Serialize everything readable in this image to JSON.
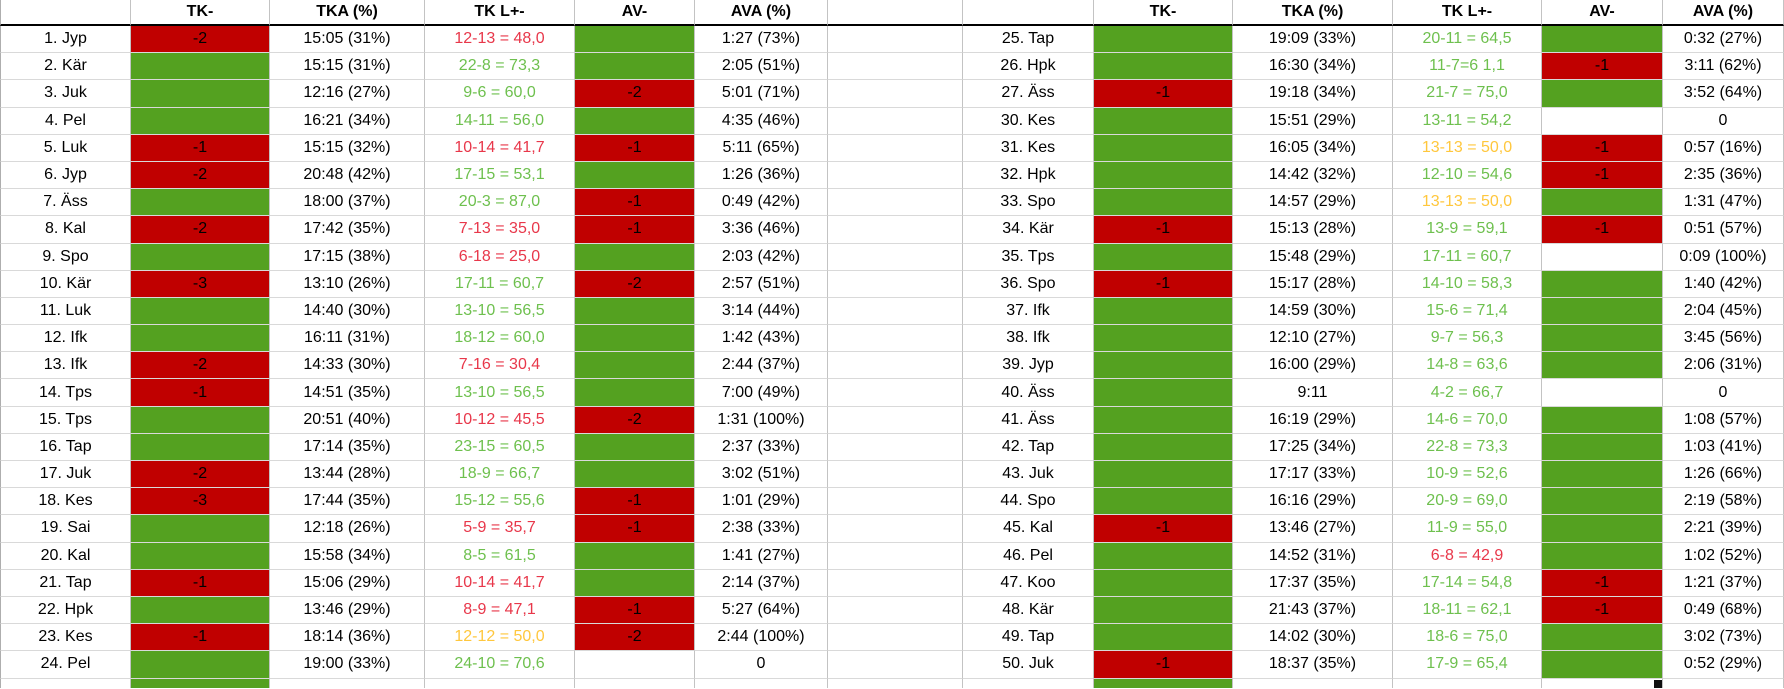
{
  "columns": {
    "name": "",
    "tk": "TK-",
    "tka": "TKA (%)",
    "tkl": "TK L+-",
    "av": "AV-",
    "ava": "AVA (%)"
  },
  "colors": {
    "green_fill": "#54A120",
    "red_fill": "#C00000",
    "green_text": "#6EC04E",
    "red_text": "#E8374A",
    "yellow_text": "#FFC73D",
    "gridline": "#d9d9d9",
    "header_rule": "#000000"
  },
  "left": {
    "rows": [
      {
        "name": "1. Jyp",
        "tk_fill": "red",
        "tk": "-2",
        "tka": "15:05 (31%)",
        "tkl": "12-13 = 48,0",
        "tkl_color": "red",
        "av_fill": "green",
        "av": "",
        "ava": "1:27 (73%)"
      },
      {
        "name": "2. Kär",
        "tk_fill": "green",
        "tk": "",
        "tka": "15:15 (31%)",
        "tkl": "22-8 = 73,3",
        "tkl_color": "green",
        "av_fill": "green",
        "av": "",
        "ava": "2:05 (51%)"
      },
      {
        "name": "3. Juk",
        "tk_fill": "green",
        "tk": "",
        "tka": "12:16 (27%)",
        "tkl": "9-6 = 60,0",
        "tkl_color": "green",
        "av_fill": "red",
        "av": "-2",
        "ava": "5:01 (71%)"
      },
      {
        "name": "4. Pel",
        "tk_fill": "green",
        "tk": "",
        "tka": "16:21 (34%)",
        "tkl": "14-11 = 56,0",
        "tkl_color": "green",
        "av_fill": "green",
        "av": "",
        "ava": "4:35 (46%)"
      },
      {
        "name": "5. Luk",
        "tk_fill": "red",
        "tk": "-1",
        "tka": "15:15 (32%)",
        "tkl": "10-14 = 41,7",
        "tkl_color": "red",
        "av_fill": "red",
        "av": "-1",
        "ava": "5:11 (65%)"
      },
      {
        "name": "6. Jyp",
        "tk_fill": "red",
        "tk": "-2",
        "tka": "20:48 (42%)",
        "tkl": "17-15 = 53,1",
        "tkl_color": "green",
        "av_fill": "green",
        "av": "",
        "ava": "1:26 (36%)"
      },
      {
        "name": "7. Äss",
        "tk_fill": "green",
        "tk": "",
        "tka": "18:00 (37%)",
        "tkl": "20-3 = 87,0",
        "tkl_color": "green",
        "av_fill": "red",
        "av": "-1",
        "ava": "0:49 (42%)"
      },
      {
        "name": "8. Kal",
        "tk_fill": "red",
        "tk": "-2",
        "tka": "17:42 (35%)",
        "tkl": "7-13 = 35,0",
        "tkl_color": "red",
        "av_fill": "red",
        "av": "-1",
        "ava": "3:36 (46%)"
      },
      {
        "name": "9. Spo",
        "tk_fill": "green",
        "tk": "",
        "tka": "17:15 (38%)",
        "tkl": "6-18 = 25,0",
        "tkl_color": "red",
        "av_fill": "green",
        "av": "",
        "ava": "2:03 (42%)"
      },
      {
        "name": "10. Kär",
        "tk_fill": "red",
        "tk": "-3",
        "tka": "13:10 (26%)",
        "tkl": "17-11 = 60,7",
        "tkl_color": "green",
        "av_fill": "red",
        "av": "-2",
        "ava": "2:57 (51%)"
      },
      {
        "name": "11. Luk",
        "tk_fill": "green",
        "tk": "",
        "tka": "14:40 (30%)",
        "tkl": "13-10 = 56,5",
        "tkl_color": "green",
        "av_fill": "green",
        "av": "",
        "ava": "3:14 (44%)"
      },
      {
        "name": "12. Ifk",
        "tk_fill": "green",
        "tk": "",
        "tka": "16:11 (31%)",
        "tkl": "18-12 = 60,0",
        "tkl_color": "green",
        "av_fill": "green",
        "av": "",
        "ava": "1:42 (43%)"
      },
      {
        "name": "13. Ifk",
        "tk_fill": "red",
        "tk": "-2",
        "tka": "14:33 (30%)",
        "tkl": "7-16 = 30,4",
        "tkl_color": "red",
        "av_fill": "green",
        "av": "",
        "ava": "2:44 (37%)"
      },
      {
        "name": "14. Tps",
        "tk_fill": "red",
        "tk": "-1",
        "tka": "14:51 (35%)",
        "tkl": "13-10 = 56,5",
        "tkl_color": "green",
        "av_fill": "green",
        "av": "",
        "ava": "7:00 (49%)"
      },
      {
        "name": "15. Tps",
        "tk_fill": "green",
        "tk": "",
        "tka": "20:51 (40%)",
        "tkl": "10-12 = 45,5",
        "tkl_color": "red",
        "av_fill": "red",
        "av": "-2",
        "ava": "1:31 (100%)"
      },
      {
        "name": "16. Tap",
        "tk_fill": "green",
        "tk": "",
        "tka": "17:14 (35%)",
        "tkl": "23-15 = 60,5",
        "tkl_color": "green",
        "av_fill": "green",
        "av": "",
        "ava": "2:37 (33%)"
      },
      {
        "name": "17. Juk",
        "tk_fill": "red",
        "tk": "-2",
        "tka": "13:44 (28%)",
        "tkl": "18-9 = 66,7",
        "tkl_color": "green",
        "av_fill": "green",
        "av": "",
        "ava": "3:02 (51%)"
      },
      {
        "name": "18. Kes",
        "tk_fill": "red",
        "tk": "-3",
        "tka": "17:44 (35%)",
        "tkl": "15-12 = 55,6",
        "tkl_color": "green",
        "av_fill": "red",
        "av": "-1",
        "ava": "1:01 (29%)"
      },
      {
        "name": "19. Sai",
        "tk_fill": "green",
        "tk": "",
        "tka": "12:18 (26%)",
        "tkl": "5-9 = 35,7",
        "tkl_color": "red",
        "av_fill": "red",
        "av": "-1",
        "ava": "2:38 (33%)"
      },
      {
        "name": "20. Kal",
        "tk_fill": "green",
        "tk": "",
        "tka": "15:58 (34%)",
        "tkl": "8-5 = 61,5",
        "tkl_color": "green",
        "av_fill": "green",
        "av": "",
        "ava": "1:41 (27%)"
      },
      {
        "name": "21. Tap",
        "tk_fill": "red",
        "tk": "-1",
        "tka": "15:06 (29%)",
        "tkl": "10-14 = 41,7",
        "tkl_color": "red",
        "av_fill": "green",
        "av": "",
        "ava": "2:14 (37%)"
      },
      {
        "name": "22. Hpk",
        "tk_fill": "green",
        "tk": "",
        "tka": "13:46 (29%)",
        "tkl": "8-9 = 47,1",
        "tkl_color": "red",
        "av_fill": "red",
        "av": "-1",
        "ava": "5:27 (64%)"
      },
      {
        "name": "23. Kes",
        "tk_fill": "red",
        "tk": "-1",
        "tka": "18:14 (36%)",
        "tkl": "12-12 = 50,0",
        "tkl_color": "yellow",
        "av_fill": "red",
        "av": "-2",
        "ava": "2:44 (100%)"
      },
      {
        "name": "24. Pel",
        "tk_fill": "green",
        "tk": "",
        "tka": "19:00 (33%)",
        "tkl": "24-10 = 70,6",
        "tkl_color": "green",
        "av_fill": "",
        "av": "",
        "ava": "0"
      }
    ]
  },
  "right": {
    "rows": [
      {
        "name": "25. Tap",
        "tk_fill": "green",
        "tk": "",
        "tka": "19:09 (33%)",
        "tkl": "20-11 = 64,5",
        "tkl_color": "green",
        "av_fill": "green",
        "av": "",
        "ava": "0:32 (27%)"
      },
      {
        "name": "26. Hpk",
        "tk_fill": "green",
        "tk": "",
        "tka": "16:30 (34%)",
        "tkl": "11-7=6 1,1",
        "tkl_color": "green",
        "av_fill": "red",
        "av": "-1",
        "ava": "3:11 (62%)"
      },
      {
        "name": "27. Äss",
        "tk_fill": "red",
        "tk": "-1",
        "tka": "19:18 (34%)",
        "tkl": "21-7 = 75,0",
        "tkl_color": "green",
        "av_fill": "green",
        "av": "",
        "ava": "3:52 (64%)"
      },
      {
        "name": "30. Kes",
        "tk_fill": "green",
        "tk": "",
        "tka": "15:51 (29%)",
        "tkl": "13-11 = 54,2",
        "tkl_color": "green",
        "av_fill": "",
        "av": "",
        "ava": "0"
      },
      {
        "name": "31. Kes",
        "tk_fill": "green",
        "tk": "",
        "tka": "16:05 (34%)",
        "tkl": "13-13 = 50,0",
        "tkl_color": "yellow",
        "av_fill": "red",
        "av": "-1",
        "ava": "0:57 (16%)"
      },
      {
        "name": "32. Hpk",
        "tk_fill": "green",
        "tk": "",
        "tka": "14:42 (32%)",
        "tkl": "12-10 = 54,6",
        "tkl_color": "green",
        "av_fill": "red",
        "av": "-1",
        "ava": "2:35 (36%)"
      },
      {
        "name": "33. Spo",
        "tk_fill": "green",
        "tk": "",
        "tka": "14:57 (29%)",
        "tkl": "13-13 = 50,0",
        "tkl_color": "yellow",
        "av_fill": "green",
        "av": "",
        "ava": "1:31 (47%)"
      },
      {
        "name": "34. Kär",
        "tk_fill": "red",
        "tk": "-1",
        "tka": "15:13 (28%)",
        "tkl": "13-9 = 59,1",
        "tkl_color": "green",
        "av_fill": "red",
        "av": "-1",
        "ava": "0:51 (57%)"
      },
      {
        "name": "35. Tps",
        "tk_fill": "green",
        "tk": "",
        "tka": "15:48 (29%)",
        "tkl": "17-11 = 60,7",
        "tkl_color": "green",
        "av_fill": "",
        "av": "",
        "ava": "0:09 (100%)"
      },
      {
        "name": "36. Spo",
        "tk_fill": "red",
        "tk": "-1",
        "tka": "15:17 (28%)",
        "tkl": "14-10 = 58,3",
        "tkl_color": "green",
        "av_fill": "green",
        "av": "",
        "ava": "1:40 (42%)"
      },
      {
        "name": "37. Ifk",
        "tk_fill": "green",
        "tk": "",
        "tka": "14:59 (30%)",
        "tkl": "15-6 = 71,4",
        "tkl_color": "green",
        "av_fill": "green",
        "av": "",
        "ava": "2:04 (45%)"
      },
      {
        "name": "38. Ifk",
        "tk_fill": "green",
        "tk": "",
        "tka": "12:10 (27%)",
        "tkl": "9-7 = 56,3",
        "tkl_color": "green",
        "av_fill": "green",
        "av": "",
        "ava": "3:45 (56%)"
      },
      {
        "name": "39. Jyp",
        "tk_fill": "green",
        "tk": "",
        "tka": "16:00 (29%)",
        "tkl": "14-8 = 63,6",
        "tkl_color": "green",
        "av_fill": "green",
        "av": "",
        "ava": "2:06 (31%)"
      },
      {
        "name": "40. Äss",
        "tk_fill": "green",
        "tk": "",
        "tka": "9:11",
        "tkl": "4-2 = 66,7",
        "tkl_color": "green",
        "av_fill": "",
        "av": "",
        "ava": "0"
      },
      {
        "name": "41. Äss",
        "tk_fill": "green",
        "tk": "",
        "tka": "16:19 (29%)",
        "tkl": "14-6 = 70,0",
        "tkl_color": "green",
        "av_fill": "green",
        "av": "",
        "ava": "1:08 (57%)"
      },
      {
        "name": "42. Tap",
        "tk_fill": "green",
        "tk": "",
        "tka": "17:25 (34%)",
        "tkl": "22-8 = 73,3",
        "tkl_color": "green",
        "av_fill": "green",
        "av": "",
        "ava": "1:03 (41%)"
      },
      {
        "name": "43. Juk",
        "tk_fill": "green",
        "tk": "",
        "tka": "17:17 (33%)",
        "tkl": "10-9 = 52,6",
        "tkl_color": "green",
        "av_fill": "green",
        "av": "",
        "ava": "1:26 (66%)"
      },
      {
        "name": "44. Spo",
        "tk_fill": "green",
        "tk": "",
        "tka": "16:16 (29%)",
        "tkl": "20-9 = 69,0",
        "tkl_color": "green",
        "av_fill": "green",
        "av": "",
        "ava": "2:19 (58%)"
      },
      {
        "name": "45. Kal",
        "tk_fill": "red",
        "tk": "-1",
        "tka": "13:46 (27%)",
        "tkl": "11-9 = 55,0",
        "tkl_color": "green",
        "av_fill": "green",
        "av": "",
        "ava": "2:21 (39%)"
      },
      {
        "name": "46. Pel",
        "tk_fill": "green",
        "tk": "",
        "tka": "14:52 (31%)",
        "tkl": "6-8 = 42,9",
        "tkl_color": "red",
        "av_fill": "green",
        "av": "",
        "ava": "1:02 (52%)"
      },
      {
        "name": "47. Koo",
        "tk_fill": "green",
        "tk": "",
        "tka": "17:37 (35%)",
        "tkl": "17-14 = 54,8",
        "tkl_color": "green",
        "av_fill": "red",
        "av": "-1",
        "ava": "1:21 (37%)"
      },
      {
        "name": "48. Kär",
        "tk_fill": "green",
        "tk": "",
        "tka": "21:43 (37%)",
        "tkl": "18-11 = 62,1",
        "tkl_color": "green",
        "av_fill": "red",
        "av": "-1",
        "ava": "0:49 (68%)"
      },
      {
        "name": "49. Tap",
        "tk_fill": "green",
        "tk": "",
        "tka": "14:02 (30%)",
        "tkl": "18-6 = 75,0",
        "tkl_color": "green",
        "av_fill": "green",
        "av": "",
        "ava": "3:02 (73%)"
      },
      {
        "name": "50. Juk",
        "tk_fill": "red",
        "tk": "-1",
        "tka": "18:37 (35%)",
        "tkl": "17-9 = 65,4",
        "tkl_color": "green",
        "av_fill": "green",
        "av": "",
        "ava": "0:52 (29%)"
      }
    ]
  },
  "bottom_partial": {
    "left_tk_fill": "green",
    "right_tk_fill": "green",
    "right_av_mark": "#101010"
  }
}
